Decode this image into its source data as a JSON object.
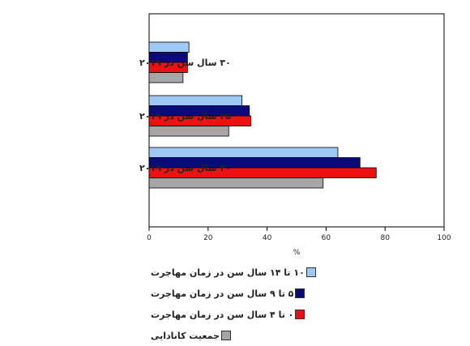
{
  "chart_data": {
    "type": "bar",
    "orientation": "horizontal",
    "categories": [
      "۳۰ سال سن در ۲۰۱۹",
      "۲۵ سال سن در ۲۰۱۹",
      "۲۰ سال سن در ۲۰۱۹"
    ],
    "series": [
      {
        "name": "۱۰ تا ۱۴ سال سن در زمان مهاجرت",
        "color": "#9fc9f5",
        "values": [
          13.5,
          31.5,
          64.0
        ]
      },
      {
        "name": "۵ تا ۹ سال سن در زمان مهاجرت",
        "color": "#0a0a7a",
        "values": [
          13.0,
          34.0,
          71.5
        ]
      },
      {
        "name": "۰ تا ۴ سال سن در زمان مهاجرت",
        "color": "#ee1111",
        "values": [
          13.0,
          34.5,
          77.0
        ]
      },
      {
        "name": "جمعیت کانادایی",
        "color": "#a6a6a6",
        "values": [
          11.5,
          27.0,
          59.0
        ]
      }
    ],
    "xlim": [
      0,
      100
    ],
    "xticks": [
      "0",
      "20",
      "40",
      "60",
      "80",
      "100"
    ],
    "xlabel": "%",
    "grid": false,
    "legend_position": "bottom"
  }
}
